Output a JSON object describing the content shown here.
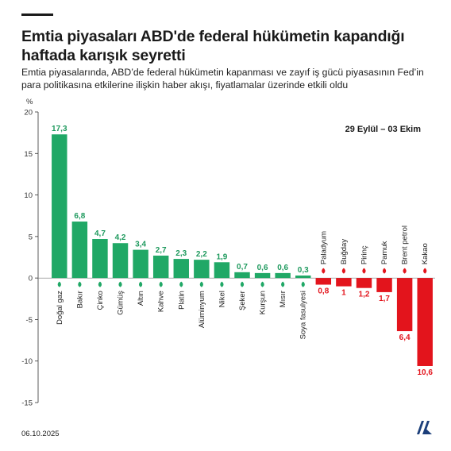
{
  "header": {
    "title": "Emtia piyasaları ABD'de federal hükümetin kapandığı haftada karışık seyretti",
    "subtitle": "Emtia piyasalarında, ABD’de federal hükümetin kapanması ve zayıf iş gücü piyasasının Fed’in para politikasına etkilerine ilişkin haber akışı, fiyatlamalar üzerinde etkili oldu"
  },
  "footer": {
    "date": "06.10.2025"
  },
  "colors": {
    "positive": "#20a866",
    "negative": "#e3141c",
    "text": "#1a1a1a",
    "positive_label": "#1f9a5e",
    "negative_label": "#e3141c"
  },
  "chart_data": {
    "type": "bar",
    "unit_label": "%",
    "period_label": "29 Eylül – 03 Ekim",
    "ylim": [
      -15,
      20
    ],
    "yticks": [
      20,
      15,
      10,
      5,
      0,
      -5,
      -10,
      -15
    ],
    "grid": false,
    "categories": [
      "Doğal gaz",
      "Bakır",
      "Çinko",
      "Gümüş",
      "Altın",
      "Kahve",
      "Platin",
      "Alüminyum",
      "Nikel",
      "Şeker",
      "Kurşun",
      "Mısır",
      "Soya fasulyesi",
      "Paladyum",
      "Buğday",
      "Pirinç",
      "Pamuk",
      "Brent petrol",
      "Kakao"
    ],
    "values": [
      17.3,
      6.8,
      4.7,
      4.2,
      3.4,
      2.7,
      2.3,
      2.2,
      1.9,
      0.7,
      0.6,
      0.6,
      0.3,
      -0.8,
      -1,
      -1.2,
      -1.7,
      -6.4,
      -10.6
    ],
    "value_labels": [
      "17,3",
      "6,8",
      "4,7",
      "4,2",
      "3,4",
      "2,7",
      "2,3",
      "2,2",
      "1,9",
      "0,7",
      "0,6",
      "0,6",
      "0,3",
      "0,8",
      "1",
      "1,2",
      "1,7",
      "6,4",
      "10,6"
    ],
    "icons": [
      "flame-icon",
      "leaf-icon",
      "leaf-icon",
      "leaf-icon",
      "leaf-icon",
      "coffee-bean-icon",
      "leaf-icon",
      "leaf-icon",
      "leaf-icon",
      "leaf-icon",
      "leaf-icon",
      "plant-icon",
      "soybean-icon",
      "leaf-icon",
      "wheat-icon",
      "rice-icon",
      "cotton-icon",
      "oil-barrel-icon",
      "cocoa-icon"
    ]
  }
}
